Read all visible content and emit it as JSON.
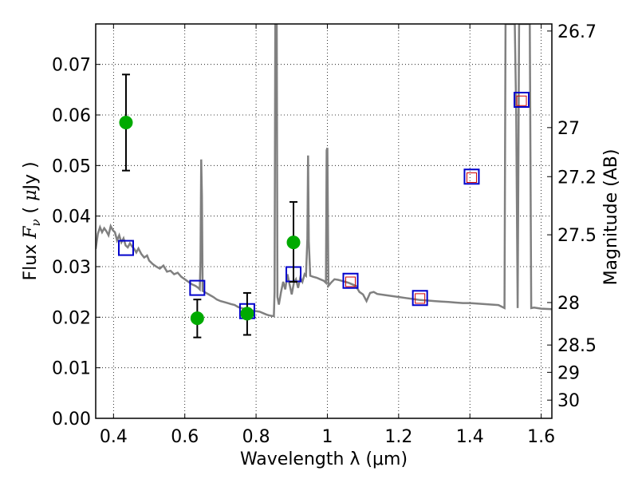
{
  "chart_data": {
    "type": "scatter",
    "xlabel": "Wavelength  λ (μm)",
    "ylabel_left": "Flux  Fν  ( μJy )",
    "ylabel_right": "Magnitude (AB)",
    "xlim": [
      0.35,
      1.63
    ],
    "ylim": [
      0.0,
      0.078
    ],
    "grid": true,
    "x_ticks": [
      0.4,
      0.6,
      0.8,
      1.0,
      1.2,
      1.4,
      1.6
    ],
    "x_tick_labels": [
      "0.4",
      "0.6",
      "0.8",
      "1",
      "1.2",
      "1.4",
      "1.6"
    ],
    "y_ticks": [
      0.0,
      0.01,
      0.02,
      0.03,
      0.04,
      0.05,
      0.06,
      0.07
    ],
    "y_tick_labels": [
      "0.00",
      "0.01",
      "0.02",
      "0.03",
      "0.04",
      "0.05",
      "0.06",
      "0.07"
    ],
    "right_ticks": [
      {
        "label": "26.7",
        "flux": 0.0766
      },
      {
        "label": "27",
        "flux": 0.0575
      },
      {
        "label": "27.2",
        "flux": 0.0478
      },
      {
        "label": "27.5",
        "flux": 0.0363
      },
      {
        "label": "28",
        "flux": 0.0229
      },
      {
        "label": "28.5",
        "flux": 0.0145
      },
      {
        "label": "29",
        "flux": 0.0091
      },
      {
        "label": "30",
        "flux": 0.0036
      }
    ],
    "series": [
      {
        "kind": "observed_photometry",
        "color": "#00aa00",
        "points": [
          {
            "x": 0.435,
            "y": 0.0585,
            "yerr_low": 0.049,
            "yerr_high": 0.068
          },
          {
            "x": 0.635,
            "y": 0.0198,
            "yerr_low": 0.016,
            "yerr_high": 0.0235
          },
          {
            "x": 0.775,
            "y": 0.0207,
            "yerr_low": 0.0165,
            "yerr_high": 0.0248
          },
          {
            "x": 0.905,
            "y": 0.0348,
            "yerr_low": 0.027,
            "yerr_high": 0.0428
          }
        ]
      },
      {
        "kind": "model_band_flux",
        "color": "#0000cc",
        "points": [
          {
            "x": 0.435,
            "y": 0.0337
          },
          {
            "x": 0.635,
            "y": 0.0258
          },
          {
            "x": 0.775,
            "y": 0.0212
          },
          {
            "x": 0.905,
            "y": 0.0285
          },
          {
            "x": 1.065,
            "y": 0.0272
          },
          {
            "x": 1.26,
            "y": 0.0238
          },
          {
            "x": 1.405,
            "y": 0.0478
          },
          {
            "x": 1.545,
            "y": 0.063
          }
        ]
      },
      {
        "kind": "model_inner_flux",
        "color": "#cc0000",
        "points": [
          {
            "x": 1.065,
            "y": 0.027
          },
          {
            "x": 1.26,
            "y": 0.0237
          },
          {
            "x": 1.405,
            "y": 0.0476
          },
          {
            "x": 1.545,
            "y": 0.0628
          }
        ]
      },
      {
        "kind": "model_spectrum",
        "color": "#808080",
        "points": [
          [
            0.35,
            0.0335
          ],
          [
            0.356,
            0.0365
          ],
          [
            0.362,
            0.0378
          ],
          [
            0.368,
            0.0368
          ],
          [
            0.374,
            0.0376
          ],
          [
            0.38,
            0.037
          ],
          [
            0.386,
            0.0362
          ],
          [
            0.392,
            0.038
          ],
          [
            0.398,
            0.0372
          ],
          [
            0.404,
            0.0368
          ],
          [
            0.41,
            0.0352
          ],
          [
            0.416,
            0.0362
          ],
          [
            0.422,
            0.0348
          ],
          [
            0.428,
            0.0356
          ],
          [
            0.434,
            0.0342
          ],
          [
            0.44,
            0.0338
          ],
          [
            0.446,
            0.0346
          ],
          [
            0.452,
            0.034
          ],
          [
            0.458,
            0.0335
          ],
          [
            0.464,
            0.0328
          ],
          [
            0.47,
            0.0336
          ],
          [
            0.478,
            0.0325
          ],
          [
            0.486,
            0.0318
          ],
          [
            0.494,
            0.0322
          ],
          [
            0.5,
            0.0312
          ],
          [
            0.51,
            0.0305
          ],
          [
            0.52,
            0.03
          ],
          [
            0.53,
            0.0296
          ],
          [
            0.54,
            0.0302
          ],
          [
            0.55,
            0.029
          ],
          [
            0.56,
            0.0292
          ],
          [
            0.57,
            0.0285
          ],
          [
            0.58,
            0.0288
          ],
          [
            0.59,
            0.028
          ],
          [
            0.6,
            0.0275
          ],
          [
            0.61,
            0.027
          ],
          [
            0.62,
            0.0265
          ],
          [
            0.63,
            0.0262
          ],
          [
            0.638,
            0.0258
          ],
          [
            0.642,
            0.0255
          ],
          [
            0.644,
            0.0312
          ],
          [
            0.646,
            0.0512
          ],
          [
            0.648,
            0.044
          ],
          [
            0.65,
            0.0252
          ],
          [
            0.66,
            0.0248
          ],
          [
            0.67,
            0.0244
          ],
          [
            0.68,
            0.024
          ],
          [
            0.69,
            0.0235
          ],
          [
            0.7,
            0.0232
          ],
          [
            0.71,
            0.023
          ],
          [
            0.72,
            0.0228
          ],
          [
            0.73,
            0.0226
          ],
          [
            0.74,
            0.0224
          ],
          [
            0.75,
            0.022
          ],
          [
            0.76,
            0.0218
          ],
          [
            0.77,
            0.0216
          ],
          [
            0.78,
            0.0214
          ],
          [
            0.79,
            0.0213
          ],
          [
            0.8,
            0.0212
          ],
          [
            0.81,
            0.0211
          ],
          [
            0.82,
            0.0208
          ],
          [
            0.83,
            0.0205
          ],
          [
            0.84,
            0.0203
          ],
          [
            0.85,
            0.0202
          ],
          [
            0.852,
            0.025
          ],
          [
            0.854,
            0.078
          ],
          [
            0.858,
            0.078
          ],
          [
            0.86,
            0.024
          ],
          [
            0.864,
            0.0225
          ],
          [
            0.87,
            0.025
          ],
          [
            0.876,
            0.027
          ],
          [
            0.882,
            0.0255
          ],
          [
            0.888,
            0.0285
          ],
          [
            0.894,
            0.0265
          ],
          [
            0.9,
            0.0245
          ],
          [
            0.906,
            0.0268
          ],
          [
            0.912,
            0.0275
          ],
          [
            0.918,
            0.0258
          ],
          [
            0.924,
            0.0278
          ],
          [
            0.93,
            0.027
          ],
          [
            0.936,
            0.0285
          ],
          [
            0.94,
            0.0282
          ],
          [
            0.944,
            0.0355
          ],
          [
            0.946,
            0.052
          ],
          [
            0.948,
            0.035
          ],
          [
            0.952,
            0.0282
          ],
          [
            0.96,
            0.028
          ],
          [
            0.97,
            0.0278
          ],
          [
            0.98,
            0.0275
          ],
          [
            0.99,
            0.0272
          ],
          [
            0.996,
            0.0268
          ],
          [
            0.998,
            0.053
          ],
          [
            1.0,
            0.0535
          ],
          [
            1.003,
            0.0262
          ],
          [
            1.01,
            0.0268
          ],
          [
            1.02,
            0.0275
          ],
          [
            1.03,
            0.0274
          ],
          [
            1.04,
            0.0272
          ],
          [
            1.05,
            0.027
          ],
          [
            1.06,
            0.0268
          ],
          [
            1.07,
            0.0265
          ],
          [
            1.08,
            0.0262
          ],
          [
            1.09,
            0.025
          ],
          [
            1.1,
            0.0245
          ],
          [
            1.11,
            0.0232
          ],
          [
            1.12,
            0.0248
          ],
          [
            1.13,
            0.025
          ],
          [
            1.14,
            0.0246
          ],
          [
            1.16,
            0.0244
          ],
          [
            1.18,
            0.0242
          ],
          [
            1.2,
            0.024
          ],
          [
            1.22,
            0.0238
          ],
          [
            1.24,
            0.0236
          ],
          [
            1.26,
            0.0234
          ],
          [
            1.28,
            0.0233
          ],
          [
            1.3,
            0.0232
          ],
          [
            1.32,
            0.0231
          ],
          [
            1.34,
            0.023
          ],
          [
            1.36,
            0.0229
          ],
          [
            1.38,
            0.0228
          ],
          [
            1.4,
            0.0228
          ],
          [
            1.42,
            0.0227
          ],
          [
            1.44,
            0.0226
          ],
          [
            1.46,
            0.0225
          ],
          [
            1.48,
            0.0224
          ],
          [
            1.497,
            0.0218
          ],
          [
            1.5,
            0.078
          ],
          [
            1.506,
            0.078
          ],
          [
            1.51,
            0.078
          ],
          [
            1.515,
            0.078
          ],
          [
            1.52,
            0.078
          ],
          [
            1.526,
            0.078
          ],
          [
            1.53,
            0.06
          ],
          [
            1.534,
            0.0218
          ],
          [
            1.538,
            0.078
          ],
          [
            1.55,
            0.078
          ],
          [
            1.56,
            0.078
          ],
          [
            1.568,
            0.078
          ],
          [
            1.572,
            0.0218
          ],
          [
            1.58,
            0.0219
          ],
          [
            1.6,
            0.0217
          ],
          [
            1.63,
            0.0216
          ]
        ]
      }
    ]
  }
}
